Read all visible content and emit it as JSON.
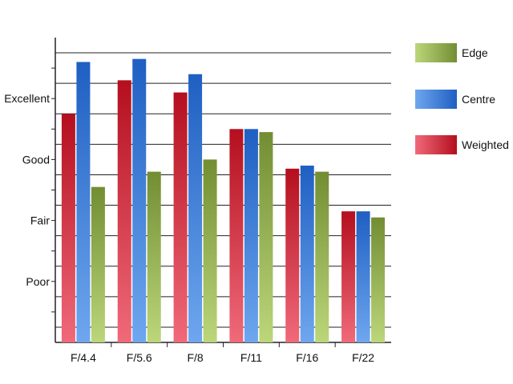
{
  "chart_data": {
    "type": "bar",
    "title": "",
    "xlabel": "",
    "ylabel": "",
    "categories": [
      "F/4.4",
      "F/5.6",
      "F/8",
      "F/11",
      "F/16",
      "F/22"
    ],
    "y_tick_labels": [
      {
        "label": "Poor",
        "value": 2
      },
      {
        "label": "Fair",
        "value": 4
      },
      {
        "label": "Good",
        "value": 6
      },
      {
        "label": "Excellent",
        "value": 8
      }
    ],
    "ylim": [
      0,
      10
    ],
    "grid": true,
    "legend_position": "right",
    "series": [
      {
        "name": "Weighted",
        "values": [
          7.5,
          8.6,
          8.2,
          7.0,
          5.7,
          4.3
        ],
        "colors": [
          "#f06a7a",
          "#b40f1e"
        ]
      },
      {
        "name": "Centre",
        "values": [
          9.2,
          9.3,
          8.8,
          7.0,
          5.8,
          4.3
        ],
        "colors": [
          "#6ea7ef",
          "#1f5fc2"
        ]
      },
      {
        "name": "Edge",
        "values": [
          5.1,
          5.6,
          6.0,
          6.9,
          5.6,
          4.1
        ],
        "colors": [
          "#bcd67a",
          "#738d33"
        ]
      }
    ],
    "legend_order": [
      "Edge",
      "Centre",
      "Weighted"
    ]
  }
}
